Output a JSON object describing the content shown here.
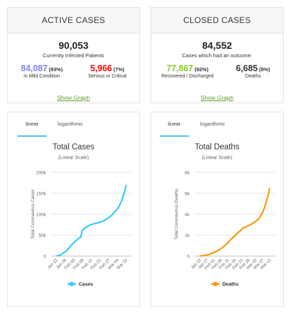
{
  "active": {
    "header": "ACTIVE CASES",
    "total": "90,053",
    "total_label": "Currently Infected Patients",
    "mild_value": "84,087",
    "mild_pct": "93%",
    "mild_label": "in Mild Condition",
    "serious_value": "5,966",
    "serious_pct": "7%",
    "serious_label": "Serious or Critical",
    "link": "Show Graph"
  },
  "closed": {
    "header": "CLOSED CASES",
    "total": "84,552",
    "total_label": "Cases which had an outcome:",
    "recovered_value": "77,867",
    "recovered_pct": "92%",
    "recovered_label": "Recovered / Discharged",
    "deaths_value": "6,685",
    "deaths_pct": "8%",
    "deaths_label": "Deaths",
    "link": "Show Graph"
  },
  "tabs": [
    "linear",
    "logarithmic"
  ],
  "colors": {
    "mild": "#8080ff",
    "serious": "#ff0000",
    "recovered": "#8ACA2B",
    "cases_line": "#33ccff",
    "deaths_line": "#F89B09",
    "link": "#5c9a2f"
  },
  "chart_data": [
    {
      "type": "line",
      "title": "Total Cases",
      "subtitle": "(Linear Scale)",
      "ylabel": "Total Coronavirus Cases",
      "ylim": [
        0,
        200000
      ],
      "yticks": [
        "0",
        "50k",
        "100k",
        "150k",
        "200k"
      ],
      "xticks": [
        "Jan 22",
        "Jan 28",
        "Feb 03",
        "Feb 09",
        "Feb 15",
        "Feb 21",
        "Feb 27",
        "Mar 04",
        "Mar 10"
      ],
      "series": [
        {
          "name": "Cases",
          "values": [
            580,
            1100,
            2000,
            2900,
            5600,
            8000,
            9800,
            11900,
            16600,
            19800,
            24400,
            28000,
            31500,
            34900,
            37500,
            40500,
            43100,
            45200,
            60300,
            64400,
            67100,
            69200,
            71200,
            73300,
            75200,
            75700,
            76700,
            77700,
            78600,
            79500,
            80400,
            81300,
            82700,
            84100,
            86000,
            88400,
            90300,
            92800,
            95100,
            97900,
            101800,
            105800,
            109800,
            114000,
            118300,
            125900,
            133000,
            145500,
            155300,
            170000
          ]
        }
      ]
    },
    {
      "type": "line",
      "title": "Total Deaths",
      "subtitle": "(Linear Scale)",
      "ylabel": "Total Coronavirus Deaths",
      "ylim": [
        0,
        8000
      ],
      "yticks": [
        "0",
        "2k",
        "4k",
        "6k",
        "8k"
      ],
      "xticks": [
        "Jan 22",
        "Jan 27",
        "Feb 01",
        "Feb 06",
        "Feb 11",
        "Feb 16",
        "Feb 21",
        "Feb 26",
        "Mar 02",
        "Mar 07",
        "Mar 12"
      ],
      "series": [
        {
          "name": "Deaths",
          "values": [
            17,
            25,
            41,
            56,
            80,
            106,
            132,
            170,
            213,
            259,
            304,
            362,
            426,
            492,
            565,
            638,
            724,
            813,
            910,
            1018,
            1115,
            1261,
            1383,
            1526,
            1669,
            1775,
            1873,
            2009,
            2126,
            2247,
            2360,
            2460,
            2618,
            2699,
            2763,
            2800,
            2858,
            2923,
            2977,
            3050,
            3117,
            3202,
            3285,
            3387,
            3494,
            3599,
            3827,
            4027,
            4296,
            4628,
            5000,
            5450,
            5900,
            6500
          ]
        }
      ]
    }
  ]
}
